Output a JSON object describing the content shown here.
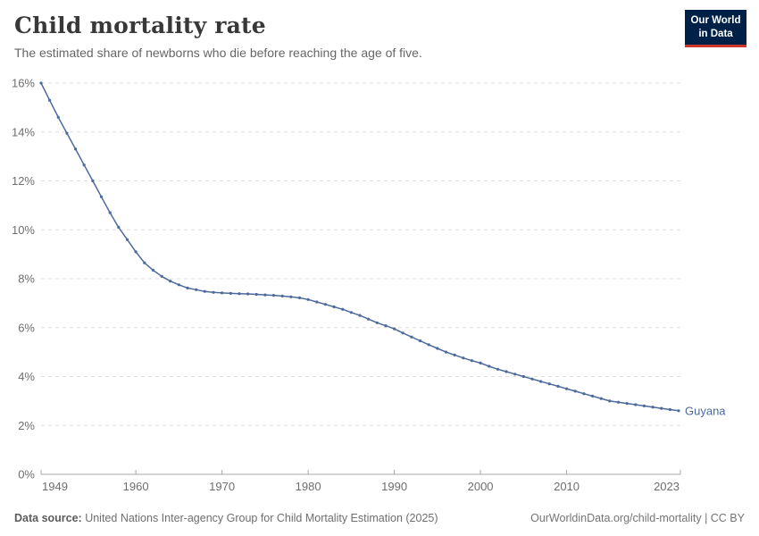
{
  "header": {
    "title": "Child mortality rate",
    "subtitle": "The estimated share of newborns who die before reaching the age of five.",
    "logo": {
      "line1": "Our World",
      "line2": "in Data"
    }
  },
  "footer": {
    "source_label": "Data source:",
    "source_text": " United Nations Inter-agency Group for Child Mortality Estimation (2025)",
    "rights": "OurWorldinData.org/child-mortality | CC BY"
  },
  "colors": {
    "accent": "#4c6a9c",
    "grid": "#dddddd",
    "axis": "#a8a8a8",
    "tick_label": "#6e6e6e",
    "logo_bg": "#002147",
    "logo_red": "#d0352a"
  },
  "chart_data": {
    "type": "line",
    "title": "Child mortality rate",
    "subtitle": "The estimated share of newborns who die before reaching the age of five.",
    "xlabel": "",
    "ylabel": "",
    "xlim": [
      1949,
      2023
    ],
    "ylim": [
      0,
      16
    ],
    "xticks": [
      1949,
      1960,
      1970,
      1980,
      1990,
      2000,
      2010,
      2023
    ],
    "yticks": [
      0,
      2,
      4,
      6,
      8,
      10,
      12,
      14,
      16
    ],
    "ytick_suffix": "%",
    "grid": "horizontal-dashed",
    "legend_position": "end-of-line-label",
    "series": [
      {
        "name": "Guyana",
        "color": "#4c6a9c",
        "years": [
          1949,
          1950,
          1951,
          1952,
          1953,
          1954,
          1955,
          1956,
          1957,
          1958,
          1959,
          1960,
          1961,
          1962,
          1963,
          1964,
          1965,
          1966,
          1967,
          1968,
          1969,
          1970,
          1971,
          1972,
          1973,
          1974,
          1975,
          1976,
          1977,
          1978,
          1979,
          1980,
          1981,
          1982,
          1983,
          1984,
          1985,
          1986,
          1987,
          1988,
          1989,
          1990,
          1991,
          1992,
          1993,
          1994,
          1995,
          1996,
          1997,
          1998,
          1999,
          2000,
          2001,
          2002,
          2003,
          2004,
          2005,
          2006,
          2007,
          2008,
          2009,
          2010,
          2011,
          2012,
          2013,
          2014,
          2015,
          2016,
          2017,
          2018,
          2019,
          2020,
          2021,
          2022,
          2023
        ],
        "values": [
          16.0,
          15.3,
          14.6,
          13.95,
          13.3,
          12.65,
          12.0,
          11.35,
          10.7,
          10.1,
          9.6,
          9.1,
          8.65,
          8.35,
          8.1,
          7.9,
          7.75,
          7.62,
          7.55,
          7.48,
          7.44,
          7.42,
          7.4,
          7.39,
          7.38,
          7.36,
          7.34,
          7.32,
          7.29,
          7.26,
          7.22,
          7.15,
          7.05,
          6.95,
          6.85,
          6.75,
          6.62,
          6.5,
          6.35,
          6.2,
          6.08,
          5.95,
          5.78,
          5.62,
          5.46,
          5.3,
          5.15,
          5.0,
          4.88,
          4.76,
          4.65,
          4.55,
          4.42,
          4.3,
          4.2,
          4.1,
          4.0,
          3.9,
          3.8,
          3.7,
          3.6,
          3.5,
          3.4,
          3.3,
          3.2,
          3.1,
          3.0,
          2.95,
          2.9,
          2.85,
          2.8,
          2.75,
          2.7,
          2.65,
          2.6
        ]
      }
    ]
  }
}
